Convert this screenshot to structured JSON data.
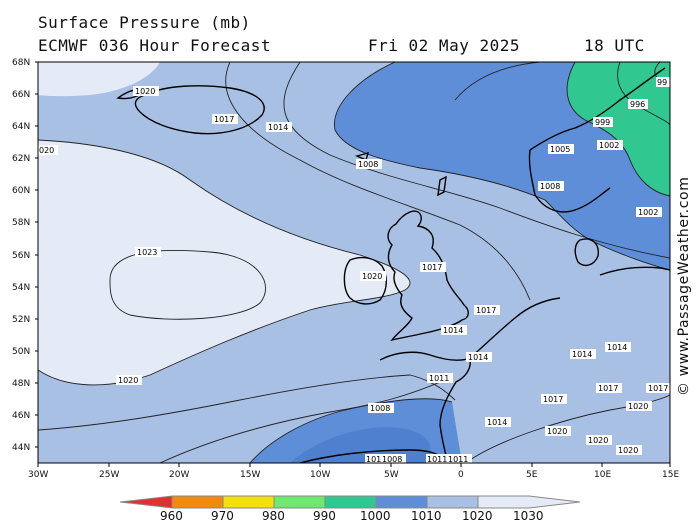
{
  "header": {
    "title": "Surface Pressure (mb)",
    "model": "ECMWF 036 Hour Forecast",
    "date": "Fri 02 May 2025",
    "time": "18 UTC"
  },
  "credit": "© www.PassageWeather.com",
  "map": {
    "lon_ticks": [
      "30W",
      "25W",
      "20W",
      "15W",
      "10W",
      "5W",
      "0",
      "5E",
      "10E",
      "15E"
    ],
    "lat_ticks": [
      "68N",
      "66N",
      "64N",
      "62N",
      "60N",
      "58N",
      "56N",
      "54N",
      "52N",
      "50N",
      "48N",
      "46N",
      "44N"
    ],
    "isobar_labels": [
      {
        "text": "1020"
      },
      {
        "text": "1017"
      },
      {
        "text": "1014"
      },
      {
        "text": "020"
      },
      {
        "text": "1008"
      },
      {
        "text": "1023"
      },
      {
        "text": "1020"
      },
      {
        "text": "1017"
      },
      {
        "text": "1017"
      },
      {
        "text": "1014"
      },
      {
        "text": "1014"
      },
      {
        "text": "1020"
      },
      {
        "text": "1011"
      },
      {
        "text": "1008"
      },
      {
        "text": "1014"
      },
      {
        "text": "1005"
      },
      {
        "text": "1002"
      },
      {
        "text": "999"
      },
      {
        "text": "996"
      },
      {
        "text": "99"
      },
      {
        "text": "1008"
      },
      {
        "text": "1002"
      },
      {
        "text": "1014"
      },
      {
        "text": "1014"
      },
      {
        "text": "1017"
      },
      {
        "text": "1017"
      },
      {
        "text": "1020"
      },
      {
        "text": "1020"
      },
      {
        "text": "1017"
      },
      {
        "text": "1020"
      },
      {
        "text": "1020"
      },
      {
        "text": "1011"
      },
      {
        "text": "1008"
      },
      {
        "text": "101"
      },
      {
        "text": "1011"
      }
    ]
  },
  "colorbar": {
    "labels": [
      "960",
      "970",
      "980",
      "990",
      "1000",
      "1010",
      "1020",
      "1030"
    ],
    "colors": [
      "#e03030",
      "#f08a10",
      "#f4e010",
      "#6fe870",
      "#30c890",
      "#5f8ed8",
      "#a8c0e4",
      "#e4eaf6"
    ]
  },
  "colors": {
    "band_1020": "#e4eaf6",
    "band_1010": "#a8c0e4",
    "band_1000": "#5f8ed8",
    "band_990": "#30c890",
    "coast": "#000000"
  }
}
